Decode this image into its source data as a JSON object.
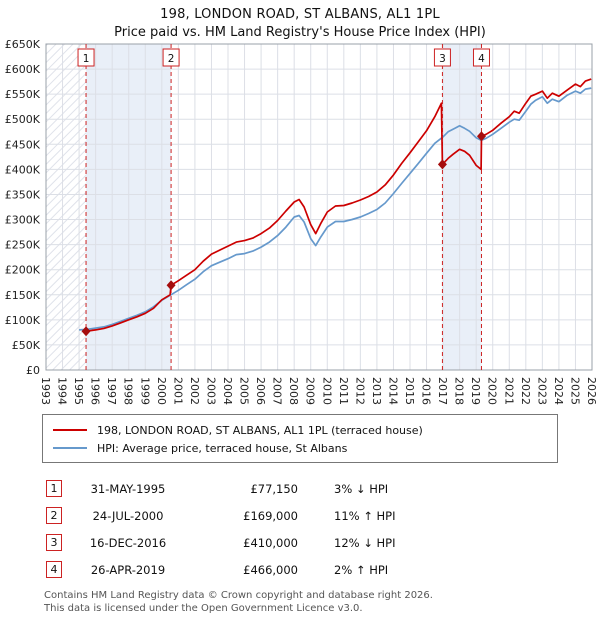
{
  "title": "198, LONDON ROAD, ST ALBANS, AL1 1PL",
  "subtitle": "Price paid vs. HM Land Registry's House Price Index (HPI)",
  "colors": {
    "price_line": "#cc0000",
    "hpi_line": "#6699cc",
    "marker_red": "#cc2222",
    "band_blue": "#e9eff8"
  },
  "chart_data": {
    "type": "line",
    "x_range": [
      1993,
      2026
    ],
    "y_range": [
      0,
      650000
    ],
    "y_tick_step": 50000,
    "y_ticks": [
      "£0",
      "£50K",
      "£100K",
      "£150K",
      "£200K",
      "£250K",
      "£300K",
      "£350K",
      "£400K",
      "£450K",
      "£500K",
      "£550K",
      "£600K",
      "£650K"
    ],
    "x_ticks": [
      1993,
      1994,
      1995,
      1996,
      1997,
      1998,
      1999,
      2000,
      2001,
      2002,
      2003,
      2004,
      2005,
      2006,
      2007,
      2008,
      2009,
      2010,
      2011,
      2012,
      2013,
      2014,
      2015,
      2016,
      2017,
      2018,
      2019,
      2020,
      2021,
      2022,
      2023,
      2024,
      2025,
      2026
    ],
    "band_color": "#e9eff8",
    "marker_color": "#cc2222",
    "hatch_bands": [
      [
        1993,
        1995.42
      ]
    ],
    "shaded_bands": [
      [
        1995.42,
        2000.56
      ],
      [
        2016.96,
        2019.32
      ]
    ],
    "markers": [
      {
        "label": "1",
        "x": 1995.42,
        "y": 77150
      },
      {
        "label": "2",
        "x": 2000.56,
        "y": 169000
      },
      {
        "label": "3",
        "x": 2016.96,
        "y": 410000
      },
      {
        "label": "4",
        "x": 2019.32,
        "y": 466000
      }
    ],
    "series": [
      {
        "name": "198, LONDON ROAD, ST ALBANS, AL1 1PL (terraced house)",
        "color": "#cc0000",
        "points": [
          [
            1995.42,
            77150
          ],
          [
            1996,
            80000
          ],
          [
            1996.5,
            83000
          ],
          [
            1997,
            88000
          ],
          [
            1997.5,
            94000
          ],
          [
            1998,
            100000
          ],
          [
            1998.5,
            106000
          ],
          [
            1999,
            113000
          ],
          [
            1999.5,
            123000
          ],
          [
            2000,
            140000
          ],
          [
            2000.5,
            150000
          ],
          [
            2000.56,
            169000
          ],
          [
            2001,
            178000
          ],
          [
            2001.5,
            189000
          ],
          [
            2002,
            200000
          ],
          [
            2002.5,
            217000
          ],
          [
            2003,
            231000
          ],
          [
            2003.5,
            239000
          ],
          [
            2004,
            247000
          ],
          [
            2004.5,
            255000
          ],
          [
            2005,
            258000
          ],
          [
            2005.5,
            263000
          ],
          [
            2006,
            272000
          ],
          [
            2006.5,
            283000
          ],
          [
            2007,
            298000
          ],
          [
            2007.5,
            317000
          ],
          [
            2008,
            335000
          ],
          [
            2008.3,
            340000
          ],
          [
            2008.6,
            325000
          ],
          [
            2009,
            290000
          ],
          [
            2009.3,
            272000
          ],
          [
            2009.6,
            292000
          ],
          [
            2010,
            315000
          ],
          [
            2010.5,
            327000
          ],
          [
            2011,
            328000
          ],
          [
            2011.5,
            333000
          ],
          [
            2012,
            339000
          ],
          [
            2012.5,
            346000
          ],
          [
            2013,
            355000
          ],
          [
            2013.5,
            369000
          ],
          [
            2014,
            389000
          ],
          [
            2014.5,
            412000
          ],
          [
            2015,
            433000
          ],
          [
            2015.5,
            455000
          ],
          [
            2016,
            477000
          ],
          [
            2016.5,
            505000
          ],
          [
            2016.9,
            532000
          ],
          [
            2016.96,
            410000
          ],
          [
            2017.3,
            422000
          ],
          [
            2017.6,
            430000
          ],
          [
            2018,
            440000
          ],
          [
            2018.3,
            436000
          ],
          [
            2018.6,
            428000
          ],
          [
            2019,
            408000
          ],
          [
            2019.3,
            400000
          ],
          [
            2019.32,
            466000
          ],
          [
            2019.6,
            470000
          ],
          [
            2020,
            478000
          ],
          [
            2020.5,
            492000
          ],
          [
            2021,
            505000
          ],
          [
            2021.3,
            516000
          ],
          [
            2021.6,
            512000
          ],
          [
            2022,
            532000
          ],
          [
            2022.3,
            546000
          ],
          [
            2022.6,
            550000
          ],
          [
            2023,
            556000
          ],
          [
            2023.3,
            542000
          ],
          [
            2023.6,
            552000
          ],
          [
            2024,
            546000
          ],
          [
            2024.5,
            558000
          ],
          [
            2025,
            570000
          ],
          [
            2025.3,
            565000
          ],
          [
            2025.6,
            576000
          ],
          [
            2025.95,
            580000
          ]
        ]
      },
      {
        "name": "HPI: Average price, terraced house, St Albans",
        "color": "#6699cc",
        "points": [
          [
            1995,
            80000
          ],
          [
            1995.5,
            81000
          ],
          [
            1996,
            83500
          ],
          [
            1996.5,
            86000
          ],
          [
            1997,
            91000
          ],
          [
            1997.5,
            97000
          ],
          [
            1998,
            103000
          ],
          [
            1998.5,
            109000
          ],
          [
            1999,
            116000
          ],
          [
            1999.5,
            126000
          ],
          [
            2000,
            139000
          ],
          [
            2000.5,
            149000
          ],
          [
            2001,
            159000
          ],
          [
            2001.5,
            170000
          ],
          [
            2002,
            181000
          ],
          [
            2002.5,
            196000
          ],
          [
            2003,
            208000
          ],
          [
            2003.5,
            215000
          ],
          [
            2004,
            222000
          ],
          [
            2004.5,
            230000
          ],
          [
            2005,
            232000
          ],
          [
            2005.5,
            237000
          ],
          [
            2006,
            245000
          ],
          [
            2006.5,
            255000
          ],
          [
            2007,
            268000
          ],
          [
            2007.5,
            285000
          ],
          [
            2008,
            305000
          ],
          [
            2008.3,
            308000
          ],
          [
            2008.6,
            295000
          ],
          [
            2009,
            262000
          ],
          [
            2009.3,
            248000
          ],
          [
            2009.6,
            265000
          ],
          [
            2010,
            285000
          ],
          [
            2010.5,
            296000
          ],
          [
            2011,
            296000
          ],
          [
            2011.5,
            300000
          ],
          [
            2012,
            305000
          ],
          [
            2012.5,
            312000
          ],
          [
            2013,
            320000
          ],
          [
            2013.5,
            333000
          ],
          [
            2014,
            352000
          ],
          [
            2014.5,
            372000
          ],
          [
            2015,
            392000
          ],
          [
            2015.5,
            412000
          ],
          [
            2016,
            432000
          ],
          [
            2016.5,
            452000
          ],
          [
            2017,
            465000
          ],
          [
            2017.3,
            475000
          ],
          [
            2017.6,
            480000
          ],
          [
            2018,
            487000
          ],
          [
            2018.3,
            482000
          ],
          [
            2018.6,
            476000
          ],
          [
            2019,
            463000
          ],
          [
            2019.3,
            458000
          ],
          [
            2019.6,
            462000
          ],
          [
            2020,
            470000
          ],
          [
            2020.5,
            482000
          ],
          [
            2021,
            494000
          ],
          [
            2021.3,
            500000
          ],
          [
            2021.6,
            498000
          ],
          [
            2022,
            516000
          ],
          [
            2022.3,
            530000
          ],
          [
            2022.6,
            538000
          ],
          [
            2023,
            545000
          ],
          [
            2023.3,
            532000
          ],
          [
            2023.6,
            540000
          ],
          [
            2024,
            535000
          ],
          [
            2024.5,
            548000
          ],
          [
            2025,
            556000
          ],
          [
            2025.3,
            552000
          ],
          [
            2025.6,
            560000
          ],
          [
            2025.95,
            562000
          ]
        ]
      }
    ]
  },
  "legend": {
    "property_label": "198, LONDON ROAD, ST ALBANS, AL1 1PL (terraced house)",
    "hpi_label": "HPI: Average price, terraced house, St Albans"
  },
  "transactions": [
    {
      "num": "1",
      "date": "31-MAY-1995",
      "price": "£77,150",
      "hpi": "3% ↓ HPI"
    },
    {
      "num": "2",
      "date": "24-JUL-2000",
      "price": "£169,000",
      "hpi": "11% ↑ HPI"
    },
    {
      "num": "3",
      "date": "16-DEC-2016",
      "price": "£410,000",
      "hpi": "12% ↓ HPI"
    },
    {
      "num": "4",
      "date": "26-APR-2019",
      "price": "£466,000",
      "hpi": "2% ↑ HPI"
    }
  ],
  "footer": {
    "line1": "Contains HM Land Registry data © Crown copyright and database right 2026.",
    "line2": "This data is licensed under the Open Government Licence v3.0."
  }
}
